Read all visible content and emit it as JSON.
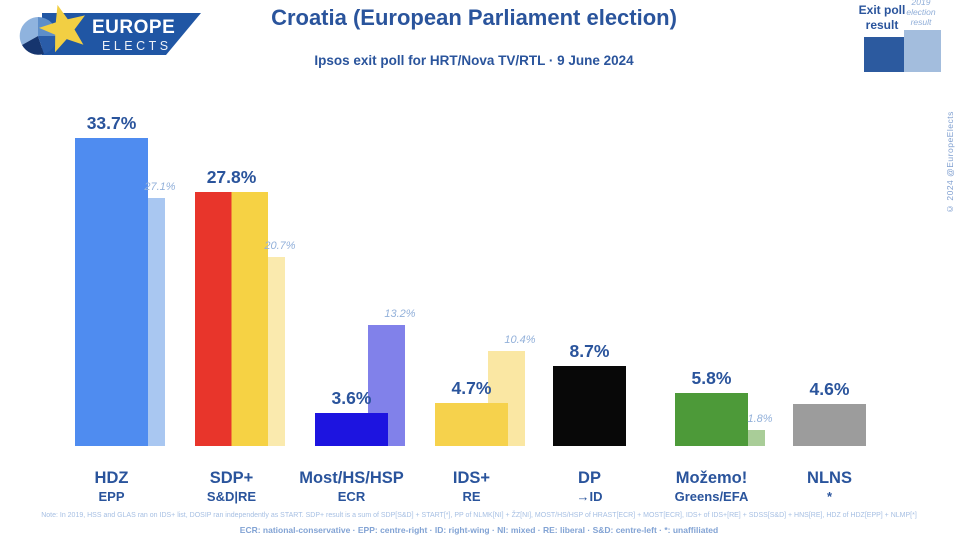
{
  "header": {
    "logo_line1": "EUROPE",
    "logo_line2": "ELECTS",
    "title": "Croatia (European Parliament election)",
    "subtitle": "Ipsos exit poll for HRT/Nova TV/RTL · 9 June 2024",
    "copyright": "© 2024 @EuropeElects"
  },
  "legend": {
    "exit_poll": "Exit poll result",
    "prev": "2019 election result",
    "exit_color": "#2c5a9f",
    "prev_color": "#a3bddd"
  },
  "parties": [
    {
      "name": "HDZ",
      "group": "EPP",
      "label": "33.7%",
      "prev_label": "27.1%",
      "value": 33.7,
      "prev": 27.1,
      "colors": [
        "#4f8cf0"
      ],
      "prev_color": "#a9c7f1"
    },
    {
      "name": "SDP+",
      "group": "S&D|RE",
      "label": "27.8%",
      "prev_label": "20.7%",
      "value": 27.8,
      "prev": 20.7,
      "colors": [
        "#e8352b",
        "#f6d244"
      ],
      "prev_color": "#faeaae"
    },
    {
      "name": "Most/HS/HSP",
      "group": "ECR",
      "label": "3.6%",
      "prev_label": "13.2%",
      "value": 3.6,
      "prev": 13.2,
      "colors": [
        "#1d14e0"
      ],
      "prev_color": "#8181ea"
    },
    {
      "name": "IDS+",
      "group": "RE",
      "label": "4.7%",
      "prev_label": "10.4%",
      "value": 4.7,
      "prev": 10.4,
      "colors": [
        "#f6d24c"
      ],
      "prev_color": "#fae7a3"
    },
    {
      "name": "DP",
      "group": "→ID",
      "label": "8.7%",
      "prev_label": null,
      "value": 8.7,
      "prev": null,
      "colors": [
        "#080808"
      ],
      "prev_color": null
    },
    {
      "name": "Možemo!",
      "group": "Greens/EFA",
      "label": "5.8%",
      "prev_label": "1.8%",
      "value": 5.8,
      "prev": 1.8,
      "colors": [
        "#4d9a39"
      ],
      "prev_color": "#a9cd98"
    },
    {
      "name": "NLNS",
      "group": "*",
      "label": "4.6%",
      "prev_label": null,
      "value": 4.6,
      "prev": null,
      "colors": [
        "#9c9c9c"
      ],
      "prev_color": null
    }
  ],
  "chart_data": {
    "type": "bar",
    "title": "Croatia (European Parliament election)",
    "subtitle": "Ipsos exit poll for HRT/Nova TV/RTL · 9 June 2024",
    "categories": [
      "HDZ",
      "SDP+",
      "Most/HS/HSP",
      "IDS+",
      "DP",
      "Možemo!",
      "NLNS"
    ],
    "category_groups": [
      "EPP",
      "S&D|RE",
      "ECR",
      "RE",
      "→ID",
      "Greens/EFA",
      "*"
    ],
    "series": [
      {
        "name": "Exit poll result",
        "values": [
          33.7,
          27.8,
          3.6,
          4.7,
          8.7,
          5.8,
          4.6
        ]
      },
      {
        "name": "2019 election result",
        "values": [
          27.1,
          20.7,
          13.2,
          10.4,
          null,
          1.8,
          null
        ]
      }
    ],
    "unit": "%",
    "ylim": [
      0,
      35
    ],
    "grid": false,
    "legend_position": "top-right",
    "xlabel": "",
    "ylabel": ""
  },
  "footnotes": {
    "note": "Note: In 2019, HSS and GLAS ran on IDS+ list, DOSIP ran independently as START. SDP+ result is a sum of SDP[S&D] + START[*], PP of NLMK[NI] + ŽZ[NI], MOST/HS/HSP of HRAST[ECR] + MOST[ECR], IDS+ of IDS+[RE] + SDSS[S&D] + HNS[RE], HDZ of HDZ[EPP] + NLMP[*]",
    "key": "ECR: national-conservative · EPP: centre-right · ID: right-wing · NI: mixed · RE: liberal · S&D: centre-left · *: unaffiliated"
  }
}
